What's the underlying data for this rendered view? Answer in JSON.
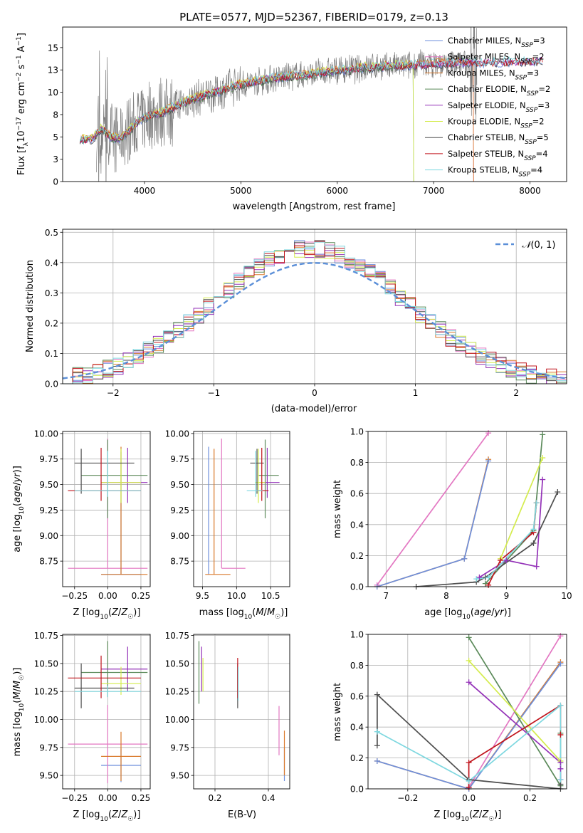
{
  "figure": {
    "title": "PLATE=0577, MJD=52367, FIBERID=0179, z=0.13"
  },
  "colors": {
    "Chabrier MILES": "#6d8fdc",
    "Salpeter MILES": "#e377c2",
    "Kroupa MILES": "#d9792a",
    "Chabrier ELODIE": "#5b8a5a",
    "Salpeter ELODIE": "#9432b8",
    "Kroupa ELODIE": "#d4ec4c",
    "Chabrier STELIB": "#4f4f4f",
    "Salpeter STELIB": "#c0141c",
    "Kroupa STELIB": "#7fd8e0",
    "data": "#7f7f7f",
    "normal": "#5b8fd8"
  },
  "chart_data": [
    {
      "id": "spectrum",
      "type": "line",
      "title": "PLATE=0577, MJD=52367, FIBERID=0179, z=0.13",
      "xlabel": "wavelength [Angstrom, rest frame]",
      "ylabel": "Flux [f_λ 10^-17 erg cm^-2 s^-1 A^-1]",
      "xlim": [
        3150,
        8380
      ],
      "ylim": [
        0,
        17.3
      ],
      "xticks": [
        4000,
        5000,
        6000,
        7000,
        8000
      ],
      "yticks": [
        0.0,
        2.5,
        5.0,
        7.5,
        10.0,
        12.5,
        15.0
      ],
      "legend_position": "top-right",
      "legend": [
        {
          "name": "Chabrier MILES",
          "nssp": "3"
        },
        {
          "name": "Salpeter MILES",
          "nssp": "2"
        },
        {
          "name": "Kroupa MILES",
          "nssp": "3"
        },
        {
          "name": "Chabrier ELODIE",
          "nssp": "2"
        },
        {
          "name": "Salpeter ELODIE",
          "nssp": "3"
        },
        {
          "name": "Kroupa ELODIE",
          "nssp": "2"
        },
        {
          "name": "Chabrier STELIB",
          "nssp": "5"
        },
        {
          "name": "Salpeter STELIB",
          "nssp": "4"
        },
        {
          "name": "Kroupa STELIB",
          "nssp": "4"
        }
      ],
      "model_continuum": {
        "x": [
          3330,
          3450,
          3550,
          3650,
          3750,
          3850,
          3950,
          4050,
          4150,
          4250,
          4350,
          4500,
          4700,
          4900,
          5100,
          5300,
          5500,
          5700,
          5900,
          6100,
          6300,
          6500,
          6700,
          6900,
          7100,
          7300,
          7500,
          7700,
          7900,
          8100
        ],
        "y": [
          4.8,
          4.7,
          5.9,
          5.0,
          4.8,
          5.8,
          6.9,
          7.4,
          7.6,
          8.1,
          8.6,
          9.2,
          9.9,
          10.6,
          11.1,
          11.5,
          11.8,
          12.0,
          12.3,
          12.5,
          12.8,
          12.9,
          13.0,
          13.1,
          13.2,
          13.3,
          13.3,
          13.4,
          13.4,
          13.5
        ]
      },
      "data_range": {
        "x": [
          3500,
          7450
        ]
      }
    },
    {
      "id": "residuals",
      "type": "step",
      "xlabel": "(data-model)/error",
      "ylabel": "Normed distribution",
      "xlim": [
        -2.5,
        2.5
      ],
      "ylim": [
        0,
        0.51
      ],
      "xticks": [
        -2,
        -1,
        0,
        1,
        2
      ],
      "yticks": [
        0.0,
        0.1,
        0.2,
        0.3,
        0.4,
        0.5
      ],
      "legend": "𝒩(0, 1)",
      "legend_position": "top-right",
      "bin_width": 0.1,
      "bin_start": -2.5
    },
    {
      "id": "age-vs-Z",
      "type": "errorbar",
      "xlabel": "Z [log10(Z/Z☉)]",
      "ylabel": "age  [log10(age/yr)]",
      "xlim": [
        -0.34,
        0.32
      ],
      "ylim": [
        8.5,
        10.02
      ],
      "xticks": [
        -0.25,
        0.0,
        0.25
      ],
      "yticks": [
        8.75,
        9.0,
        9.25,
        9.5,
        9.75,
        10.0
      ],
      "points": [
        {
          "model": "Chabrier MILES",
          "x": 0.1,
          "xerr": [
            0.15,
            0.15
          ],
          "y": 8.62,
          "yerr": [
            0.0,
            1.2
          ]
        },
        {
          "model": "Salpeter MILES",
          "x": 0.0,
          "xerr": [
            0.3,
            0.3
          ],
          "y": 8.68,
          "yerr": [
            0.0,
            1.27
          ]
        },
        {
          "model": "Kroupa MILES",
          "x": 0.1,
          "xerr": [
            0.15,
            0.2
          ],
          "y": 8.62,
          "yerr": [
            0.0,
            1.25
          ]
        },
        {
          "model": "Chabrier ELODIE",
          "x": 0.0,
          "xerr": [
            0.2,
            0.3
          ],
          "y": 9.59,
          "yerr": [
            0.42,
            0.35
          ]
        },
        {
          "model": "Salpeter ELODIE",
          "x": 0.15,
          "xerr": [
            0.2,
            0.15
          ],
          "y": 9.52,
          "yerr": [
            0.2,
            0.34
          ]
        },
        {
          "model": "Kroupa ELODIE",
          "x": 0.1,
          "xerr": [
            0.15,
            0.15
          ],
          "y": 9.52,
          "yerr": [
            0.2,
            0.33
          ]
        },
        {
          "model": "Chabrier STELIB",
          "x": -0.2,
          "xerr": [
            0.05,
            0.4
          ],
          "y": 9.71,
          "yerr": [
            0.3,
            0.14
          ]
        },
        {
          "model": "Salpeter STELIB",
          "x": -0.05,
          "xerr": [
            0.25,
            0.3
          ],
          "y": 9.44,
          "yerr": [
            0.1,
            0.42
          ]
        },
        {
          "model": "Kroupa STELIB",
          "x": 0.0,
          "xerr": [
            0.25,
            0.25
          ],
          "y": 9.44,
          "yerr": [
            0.06,
            0.39
          ]
        }
      ]
    },
    {
      "id": "age-vs-mass",
      "type": "errorbar",
      "xlabel": "mass [log10(M/M☉)]",
      "ylabel": "",
      "xlim": [
        9.37,
        10.78
      ],
      "ylim": [
        8.5,
        10.02
      ],
      "xticks": [
        9.5,
        10.0,
        10.5
      ],
      "yticks": [
        8.75,
        9.0,
        9.25,
        9.5,
        9.75,
        10.0
      ],
      "points": [
        {
          "model": "Chabrier MILES",
          "x": 9.59,
          "xerr": [
            0.0,
            0.0
          ],
          "y": 8.62,
          "yerr": [
            0.0,
            1.25
          ]
        },
        {
          "model": "Salpeter MILES",
          "x": 9.78,
          "xerr": [
            0.0,
            0.35
          ],
          "y": 8.68,
          "yerr": [
            0.0,
            1.27
          ]
        },
        {
          "model": "Kroupa MILES",
          "x": 9.67,
          "xerr": [
            0.13,
            0.24
          ],
          "y": 8.62,
          "yerr": [
            0.0,
            1.23
          ]
        },
        {
          "model": "Chabrier ELODIE",
          "x": 10.42,
          "xerr": [
            0.1,
            0.2
          ],
          "y": 9.59,
          "yerr": [
            0.42,
            0.35
          ]
        },
        {
          "model": "Salpeter ELODIE",
          "x": 10.45,
          "xerr": [
            0.1,
            0.18
          ],
          "y": 9.52,
          "yerr": [
            0.15,
            0.34
          ]
        },
        {
          "model": "Kroupa ELODIE",
          "x": 10.32,
          "xerr": [
            0.05,
            0.1
          ],
          "y": 9.52,
          "yerr": [
            0.2,
            0.33
          ]
        },
        {
          "model": "Chabrier STELIB",
          "x": 10.3,
          "xerr": [
            0.1,
            0.1
          ],
          "y": 9.71,
          "yerr": [
            0.3,
            0.14
          ]
        },
        {
          "model": "Salpeter STELIB",
          "x": 10.37,
          "xerr": [
            0.07,
            0.1
          ],
          "y": 9.44,
          "yerr": [
            0.1,
            0.42
          ]
        },
        {
          "model": "Kroupa STELIB",
          "x": 10.28,
          "xerr": [
            0.13,
            0.1
          ],
          "y": 9.44,
          "yerr": [
            0.06,
            0.39
          ]
        }
      ]
    },
    {
      "id": "weight-vs-age",
      "type": "line",
      "xlabel": "age  [log10(age/yr)]",
      "ylabel": "mass weight",
      "xlim": [
        6.7,
        10.0
      ],
      "ylim": [
        0,
        1.0
      ],
      "xticks": [
        7,
        8,
        9,
        10
      ],
      "yticks": [
        0.0,
        0.2,
        0.4,
        0.6,
        0.8,
        1.0
      ],
      "series": [
        {
          "model": "Salpeter MILES",
          "x": [
            6.85,
            8.7
          ],
          "y": [
            0.01,
            0.99
          ]
        },
        {
          "model": "Kroupa MILES",
          "x": [
            6.85,
            8.3,
            8.7
          ],
          "y": [
            0.0,
            0.18,
            0.82
          ]
        },
        {
          "model": "Chabrier MILES",
          "x": [
            6.85,
            8.3,
            8.7
          ],
          "y": [
            0.0,
            0.18,
            0.81
          ]
        },
        {
          "model": "Chabrier ELODIE",
          "x": [
            8.65,
            9.45,
            9.6
          ],
          "y": [
            0.02,
            0.36,
            0.98
          ]
        },
        {
          "model": "Kroupa ELODIE",
          "x": [
            8.9,
            9.6
          ],
          "y": [
            0.18,
            0.83
          ]
        },
        {
          "model": "Salpeter ELODIE",
          "x": [
            8.55,
            9.0,
            9.5,
            9.6
          ],
          "y": [
            0.06,
            0.17,
            0.13,
            0.69
          ]
        },
        {
          "model": "Chabrier STELIB",
          "x": [
            7.5,
            8.5,
            8.65,
            9.45,
            9.85
          ],
          "y": [
            0.0,
            0.03,
            0.06,
            0.28,
            0.61
          ]
        },
        {
          "model": "Salpeter STELIB",
          "x": [
            8.7,
            8.9,
            9.45,
            9.5
          ],
          "y": [
            0.01,
            0.17,
            0.35,
            0.54
          ]
        },
        {
          "model": "Kroupa STELIB",
          "x": [
            8.5,
            8.7,
            9.45,
            9.5
          ],
          "y": [
            0.05,
            0.06,
            0.37,
            0.54
          ]
        }
      ]
    },
    {
      "id": "mass-vs-Z",
      "type": "errorbar",
      "xlabel": "Z [log10(Z/Z☉)]",
      "ylabel": "mass [log10(M/M☉)]",
      "xlim": [
        -0.34,
        0.32
      ],
      "ylim": [
        9.38,
        10.76
      ],
      "xticks": [
        -0.25,
        0.0,
        0.25
      ],
      "yticks": [
        9.5,
        9.75,
        10.0,
        10.25,
        10.5,
        10.75
      ],
      "points": [
        {
          "model": "Chabrier MILES",
          "x": 0.1,
          "xerr": [
            0.15,
            0.15
          ],
          "y": 9.59,
          "yerr": [
            0.15,
            0.15
          ]
        },
        {
          "model": "Salpeter MILES",
          "x": 0.0,
          "xerr": [
            0.3,
            0.3
          ],
          "y": 9.78,
          "yerr": [
            0.35,
            0.35
          ]
        },
        {
          "model": "Kroupa MILES",
          "x": 0.1,
          "xerr": [
            0.15,
            0.15
          ],
          "y": 9.67,
          "yerr": [
            0.22,
            0.22
          ]
        },
        {
          "model": "Chabrier ELODIE",
          "x": 0.0,
          "xerr": [
            0.2,
            0.3
          ],
          "y": 10.42,
          "yerr": [
            0.22,
            0.28
          ]
        },
        {
          "model": "Salpeter ELODIE",
          "x": 0.15,
          "xerr": [
            0.2,
            0.15
          ],
          "y": 10.45,
          "yerr": [
            0.2,
            0.2
          ]
        },
        {
          "model": "Kroupa ELODIE",
          "x": 0.1,
          "xerr": [
            0.15,
            0.15
          ],
          "y": 10.32,
          "yerr": [
            0.1,
            0.15
          ]
        },
        {
          "model": "Chabrier STELIB",
          "x": -0.2,
          "xerr": [
            0.05,
            0.4
          ],
          "y": 10.28,
          "yerr": [
            0.18,
            0.22
          ]
        },
        {
          "model": "Salpeter STELIB",
          "x": -0.05,
          "xerr": [
            0.25,
            0.3
          ],
          "y": 10.37,
          "yerr": [
            0.18,
            0.2
          ]
        },
        {
          "model": "Kroupa STELIB",
          "x": 0.0,
          "xerr": [
            0.25,
            0.25
          ],
          "y": 10.25,
          "yerr": [
            0.05,
            0.05
          ]
        }
      ]
    },
    {
      "id": "mass-vs-ebv",
      "type": "errorbar",
      "xlabel": "E(B-V)",
      "ylabel": "",
      "xlim": [
        0.12,
        0.48
      ],
      "ylim": [
        9.38,
        10.76
      ],
      "xticks": [
        0.2,
        0.4
      ],
      "yticks": [
        9.5,
        9.75,
        10.0,
        10.25,
        10.5,
        10.75
      ],
      "points": [
        {
          "model": "Chabrier MILES",
          "x": 0.46,
          "xerr": [
            0.0,
            0.0
          ],
          "y": 9.6,
          "yerr": [
            0.15,
            0.15
          ]
        },
        {
          "model": "Salpeter MILES",
          "x": 0.44,
          "xerr": [
            0.0,
            0.0
          ],
          "y": 9.9,
          "yerr": [
            0.22,
            0.22
          ]
        },
        {
          "model": "Kroupa MILES",
          "x": 0.46,
          "xerr": [
            0.0,
            0.0
          ],
          "y": 9.7,
          "yerr": [
            0.2,
            0.2
          ]
        },
        {
          "model": "Chabrier ELODIE",
          "x": 0.14,
          "xerr": [
            0.0,
            0.0
          ],
          "y": 10.42,
          "yerr": [
            0.28,
            0.28
          ]
        },
        {
          "model": "Salpeter ELODIE",
          "x": 0.15,
          "xerr": [
            0.0,
            0.0
          ],
          "y": 10.45,
          "yerr": [
            0.2,
            0.2
          ]
        },
        {
          "model": "Kroupa ELODIE",
          "x": 0.155,
          "xerr": [
            0.0,
            0.0
          ],
          "y": 10.4,
          "yerr": [
            0.15,
            0.15
          ]
        },
        {
          "model": "Chabrier STELIB",
          "x": 0.285,
          "xerr": [
            0.0,
            0.0
          ],
          "y": 10.3,
          "yerr": [
            0.2,
            0.2
          ]
        },
        {
          "model": "Salpeter STELIB",
          "x": 0.285,
          "xerr": [
            0.0,
            0.0
          ],
          "y": 10.37,
          "yerr": [
            0.18,
            0.18
          ]
        },
        {
          "model": "Kroupa STELIB",
          "x": 0.287,
          "xerr": [
            0.0,
            0.0
          ],
          "y": 10.32,
          "yerr": [
            0.15,
            0.15
          ]
        }
      ]
    },
    {
      "id": "weight-vs-Z",
      "type": "line",
      "xlabel": "Z [log10(Z/Z☉)]",
      "ylabel": "mass weight",
      "xlim": [
        -0.33,
        0.32
      ],
      "ylim": [
        0,
        1.0
      ],
      "xticks": [
        -0.2,
        0.0,
        0.2
      ],
      "yticks": [
        0.0,
        0.2,
        0.4,
        0.6,
        0.8,
        1.0
      ],
      "series": [
        {
          "model": "Salpeter MILES",
          "x": [
            0.0,
            0.3
          ],
          "y": [
            0.01,
            0.99
          ]
        },
        {
          "model": "Kroupa MILES",
          "x": [
            -0.3,
            0.0,
            0.3
          ],
          "y": [
            0.18,
            0.0,
            0.82
          ]
        },
        {
          "model": "Chabrier MILES",
          "x": [
            -0.3,
            0.0,
            0.3
          ],
          "y": [
            0.18,
            0.0,
            0.81
          ]
        },
        {
          "model": "Chabrier ELODIE",
          "x": [
            0.0,
            0.3,
            0.3
          ],
          "y": [
            0.98,
            0.02,
            0.36
          ]
        },
        {
          "model": "Kroupa ELODIE",
          "x": [
            0.0,
            0.3
          ],
          "y": [
            0.83,
            0.18
          ]
        },
        {
          "model": "Salpeter ELODIE",
          "x": [
            0.0,
            0.3,
            0.3,
            0.3
          ],
          "y": [
            0.69,
            0.17,
            0.13,
            0.06
          ]
        },
        {
          "model": "Chabrier STELIB",
          "x": [
            -0.3,
            -0.3,
            0.0,
            0.3,
            0.3
          ],
          "y": [
            0.28,
            0.61,
            0.06,
            0.0,
            0.03
          ]
        },
        {
          "model": "Salpeter STELIB",
          "x": [
            0.0,
            0.0,
            0.3,
            0.3
          ],
          "y": [
            0.01,
            0.17,
            0.54,
            0.35
          ]
        },
        {
          "model": "Kroupa STELIB",
          "x": [
            -0.3,
            0.0,
            0.3,
            0.3
          ],
          "y": [
            0.37,
            0.05,
            0.54,
            0.06
          ]
        }
      ]
    }
  ]
}
